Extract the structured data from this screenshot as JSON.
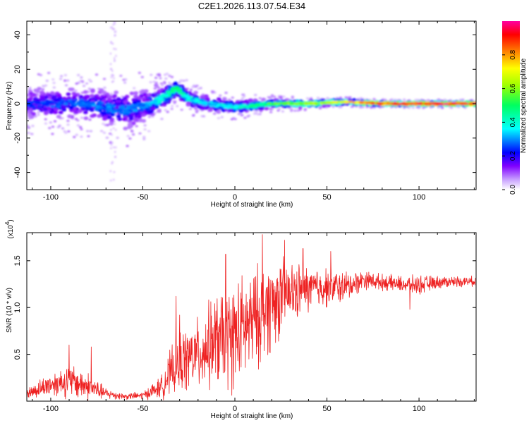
{
  "title": "C2E1.2026.113.07.54.E34",
  "chart_data": [
    {
      "type": "heatmap",
      "title": "C2E1.2026.113.07.54.E34",
      "xlabel": "Height of straight line (km)",
      "ylabel": "Frequency (Hz)",
      "xlim": [
        -113,
        131
      ],
      "ylim": [
        -50,
        48
      ],
      "xticks": [
        -100,
        -50,
        0,
        50,
        100
      ],
      "yticks": [
        -40,
        -20,
        0,
        20,
        40
      ],
      "xtick_labels": [
        "-100",
        "-50",
        "0",
        "50",
        "100"
      ],
      "ytick_labels": [
        "-40",
        "-20",
        "0",
        "20",
        "40"
      ],
      "colorbar": {
        "label": "Normalized spectral amplitude",
        "range": [
          0,
          1
        ],
        "ticks": [
          0.0,
          0.2,
          0.4,
          0.6,
          0.8
        ],
        "tick_labels": [
          "0.0",
          "0.2",
          "0.4",
          "0.6",
          "0.8"
        ],
        "colormap": [
          "#ffffff",
          "#b8a0ff",
          "#8000ff",
          "#0000ff",
          "#00ffff",
          "#00ff00",
          "#ffff00",
          "#ff8000",
          "#ff0000",
          "#ff0080"
        ]
      },
      "ridge": {
        "description_points_x": [
          -113,
          -80,
          -60,
          -50,
          -40,
          -32,
          -25,
          -15,
          0,
          20,
          40,
          60,
          80,
          100,
          131
        ],
        "center_freq_hz": [
          0,
          0,
          -4,
          -2,
          3,
          9,
          3,
          0,
          -2,
          0,
          0,
          1,
          0,
          0,
          0
        ],
        "amplitude": [
          0.25,
          0.3,
          0.3,
          0.3,
          0.4,
          0.5,
          0.4,
          0.35,
          0.4,
          0.55,
          0.65,
          0.75,
          0.9,
          0.95,
          0.95
        ],
        "spread_hz": [
          7,
          8,
          9,
          8,
          6,
          4,
          4,
          4,
          3,
          2,
          1.5,
          1.2,
          1,
          1,
          1
        ]
      }
    },
    {
      "type": "line",
      "title": "",
      "xlabel": "Height of straight line (km)",
      "ylabel": "SNR (10 * v/v)",
      "y_multiplier": "(x10",
      "y_multiplier_exp": "4",
      "y_multiplier_close": ")",
      "xlim": [
        -113,
        131
      ],
      "ylim": [
        0,
        1.8
      ],
      "xticks": [
        -100,
        -50,
        0,
        50,
        100
      ],
      "yticks": [
        0.5,
        1.0,
        1.5
      ],
      "xtick_labels": [
        "-100",
        "-50",
        "0",
        "50",
        "100"
      ],
      "ytick_labels": [
        "0.5",
        "1.0",
        "1.5"
      ],
      "series": [
        {
          "name": "SNR",
          "color": "#ee2222",
          "envelope_x": [
            -113,
            -100,
            -90,
            -80,
            -70,
            -60,
            -50,
            -40,
            -35,
            -30,
            -20,
            -10,
            0,
            10,
            20,
            30,
            40,
            50,
            60,
            70,
            80,
            90,
            100,
            110,
            120,
            131
          ],
          "envelope_mean": [
            0.08,
            0.18,
            0.22,
            0.16,
            0.08,
            0.05,
            0.06,
            0.15,
            0.3,
            0.42,
            0.5,
            0.65,
            0.7,
            0.85,
            1.05,
            1.15,
            1.2,
            1.22,
            1.22,
            1.3,
            1.27,
            1.25,
            1.24,
            1.27,
            1.28,
            1.28
          ],
          "envelope_amp": [
            0.07,
            0.15,
            0.22,
            0.18,
            0.07,
            0.04,
            0.05,
            0.14,
            0.3,
            0.4,
            0.45,
            0.6,
            0.7,
            0.65,
            0.6,
            0.4,
            0.3,
            0.25,
            0.2,
            0.12,
            0.1,
            0.1,
            0.12,
            0.08,
            0.07,
            0.06
          ],
          "peaks": [
            {
              "x": -90,
              "y": 0.6
            },
            {
              "x": -78,
              "y": 0.58
            },
            {
              "x": -30,
              "y": 0.92
            },
            {
              "x": -32,
              "y": 1.12
            },
            {
              "x": -5,
              "y": 1.57
            },
            {
              "x": 15,
              "y": 1.78
            },
            {
              "x": 27,
              "y": 1.72
            },
            {
              "x": 37,
              "y": 1.63
            },
            {
              "x": 52,
              "y": 1.6
            },
            {
              "x": 95,
              "y": 0.98
            }
          ]
        }
      ]
    }
  ]
}
